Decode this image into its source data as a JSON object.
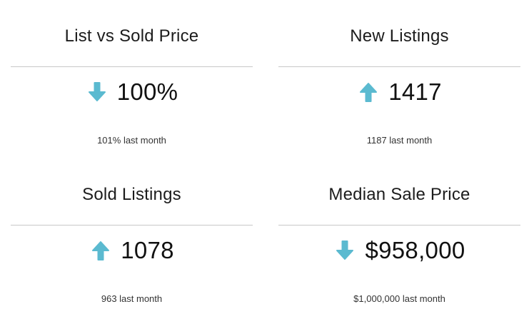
{
  "accent_color": "#5bbad0",
  "cards": [
    {
      "title": "List vs Sold Price",
      "value": "100%",
      "trend": "down",
      "trend_icon": "arrow-down-icon",
      "comparison": "101% last month"
    },
    {
      "title": "New Listings",
      "value": "1417",
      "trend": "up",
      "trend_icon": "arrow-up-icon",
      "comparison": "1187 last month"
    },
    {
      "title": "Sold Listings",
      "value": "1078",
      "trend": "up",
      "trend_icon": "arrow-up-icon",
      "comparison": "963 last month"
    },
    {
      "title": "Median Sale Price",
      "value": "$958,000",
      "trend": "down",
      "trend_icon": "arrow-down-icon",
      "comparison": "$1,000,000 last month"
    }
  ]
}
